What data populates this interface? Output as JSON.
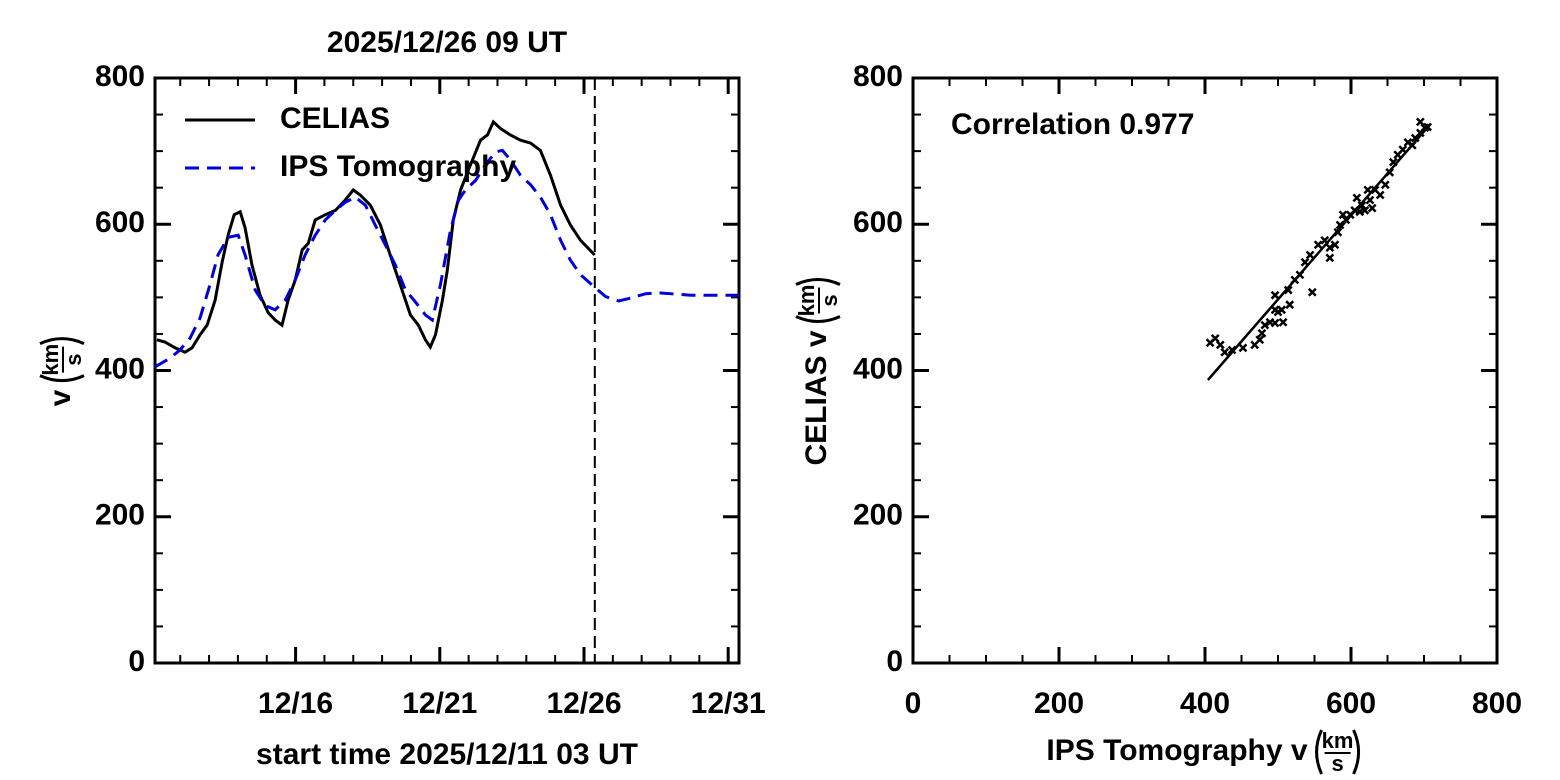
{
  "chart_data": [
    {
      "type": "line",
      "title": "2025/12/26 09 UT",
      "xlabel": "start time 2025/12/11 03 UT",
      "ylabel": "v",
      "unit": {
        "num": "km",
        "den": "s"
      },
      "xlim": [
        11.125,
        31.375
      ],
      "xticks": [
        {
          "value": 16,
          "label": "12/16"
        },
        {
          "value": 21,
          "label": "12/21"
        },
        {
          "value": 26,
          "label": "12/26"
        },
        {
          "value": 31,
          "label": "12/31"
        }
      ],
      "xminor": [
        12,
        13,
        14,
        15,
        16,
        17,
        18,
        19,
        20,
        21,
        22,
        23,
        24,
        25,
        26,
        27,
        28,
        29,
        30,
        31
      ],
      "ylim": [
        0,
        800
      ],
      "yticks": [
        0,
        200,
        400,
        600,
        800
      ],
      "yminor": [
        0,
        50,
        100,
        150,
        200,
        250,
        300,
        350,
        400,
        450,
        500,
        550,
        600,
        650,
        700,
        750,
        800
      ],
      "vline": 26.375,
      "legend": "upper left",
      "series": [
        {
          "name": "CELIAS",
          "color": "#000000",
          "linestyle": "solid",
          "x": [
            11.19,
            11.47,
            11.82,
            12.17,
            12.41,
            12.69,
            12.93,
            13.21,
            13.45,
            13.66,
            13.87,
            14.08,
            14.25,
            14.49,
            14.77,
            15.05,
            15.29,
            15.53,
            15.74,
            15.99,
            16.23,
            16.44,
            16.68,
            17.03,
            17.38,
            17.72,
            18.0,
            18.24,
            18.59,
            18.94,
            19.28,
            19.63,
            19.98,
            20.26,
            20.5,
            20.67,
            20.85,
            21.09,
            21.26,
            21.47,
            21.72,
            22.06,
            22.41,
            22.65,
            22.86,
            23.1,
            23.45,
            23.8,
            24.15,
            24.49,
            24.84,
            25.19,
            25.53,
            25.88,
            26.37
          ],
          "values": [
            442,
            439,
            431,
            425,
            431,
            449,
            462,
            496,
            548,
            585,
            613,
            617,
            595,
            544,
            503,
            479,
            469,
            462,
            496,
            524,
            565,
            574,
            606,
            613,
            619,
            633,
            647,
            640,
            626,
            599,
            558,
            517,
            476,
            462,
            442,
            432,
            449,
            496,
            537,
            606,
            647,
            681,
            715,
            722,
            740,
            731,
            722,
            715,
            711,
            701,
            667,
            626,
            599,
            578,
            558
          ]
        },
        {
          "name": "IPS Tomography",
          "color": "#0000dd",
          "linestyle": "dashed",
          "x": [
            11.13,
            11.65,
            11.99,
            12.34,
            12.69,
            13.03,
            13.31,
            13.66,
            14.01,
            14.25,
            14.6,
            14.94,
            15.29,
            15.64,
            15.99,
            16.33,
            16.68,
            17.03,
            17.38,
            17.72,
            18.07,
            18.42,
            18.76,
            19.11,
            19.46,
            19.81,
            20.15,
            20.5,
            20.74,
            21.02,
            21.37,
            21.65,
            21.89,
            22.24,
            22.58,
            22.93,
            23.17,
            23.45,
            23.8,
            24.15,
            24.49,
            24.84,
            25.19,
            25.53,
            25.88,
            26.4,
            26.75,
            27.2,
            27.62,
            28.14,
            28.66,
            29.7,
            31.375
          ],
          "values": [
            405,
            417,
            428,
            444,
            472,
            517,
            558,
            582,
            585,
            558,
            510,
            489,
            483,
            496,
            524,
            558,
            585,
            606,
            619,
            630,
            637,
            626,
            599,
            572,
            544,
            510,
            494,
            476,
            469,
            517,
            592,
            633,
            647,
            660,
            681,
            699,
            701,
            688,
            667,
            654,
            637,
            613,
            578,
            551,
            531,
            513,
            501,
            495,
            499,
            505,
            506,
            503,
            503
          ]
        }
      ]
    },
    {
      "type": "scatter",
      "annotation": "Correlation 0.977",
      "xlabel": "IPS Tomography  v",
      "ylabel": "CELIAS  v",
      "unit": {
        "num": "km",
        "den": "s"
      },
      "xlim": [
        0,
        800
      ],
      "xticks": [
        0,
        200,
        400,
        600,
        800
      ],
      "xminor": [
        0,
        50,
        100,
        150,
        200,
        250,
        300,
        350,
        400,
        450,
        500,
        550,
        600,
        650,
        700,
        750,
        800
      ],
      "ylim": [
        0,
        800
      ],
      "yticks": [
        0,
        200,
        400,
        600,
        800
      ],
      "yminor": [
        0,
        50,
        100,
        150,
        200,
        250,
        300,
        350,
        400,
        450,
        500,
        550,
        600,
        650,
        700,
        750,
        800
      ],
      "color": "#000000",
      "x": [
        407,
        414,
        421,
        427,
        437,
        452,
        468,
        475,
        478,
        482,
        489,
        496,
        500,
        507,
        496,
        505,
        496,
        516,
        514,
        523,
        530,
        537,
        544,
        547,
        555,
        564,
        571,
        578,
        571,
        582,
        585,
        589,
        593,
        599,
        605,
        612,
        619,
        608,
        615,
        626,
        629,
        623,
        633,
        640,
        647,
        653,
        658,
        664,
        671,
        678,
        684,
        688,
        695,
        701,
        695,
        705
      ],
      "values": [
        438,
        444,
        435,
        425,
        428,
        431,
        435,
        442,
        451,
        462,
        466,
        465,
        480,
        466,
        483,
        483,
        503,
        490,
        510,
        524,
        531,
        548,
        558,
        507,
        572,
        578,
        568,
        572,
        554,
        589,
        599,
        613,
        606,
        613,
        619,
        617,
        619,
        636,
        626,
        633,
        622,
        647,
        647,
        640,
        654,
        671,
        685,
        695,
        702,
        712,
        708,
        718,
        725,
        732,
        740,
        733
      ],
      "fit_x": [
        404,
        708
      ],
      "fit_y": [
        387,
        736
      ]
    }
  ]
}
